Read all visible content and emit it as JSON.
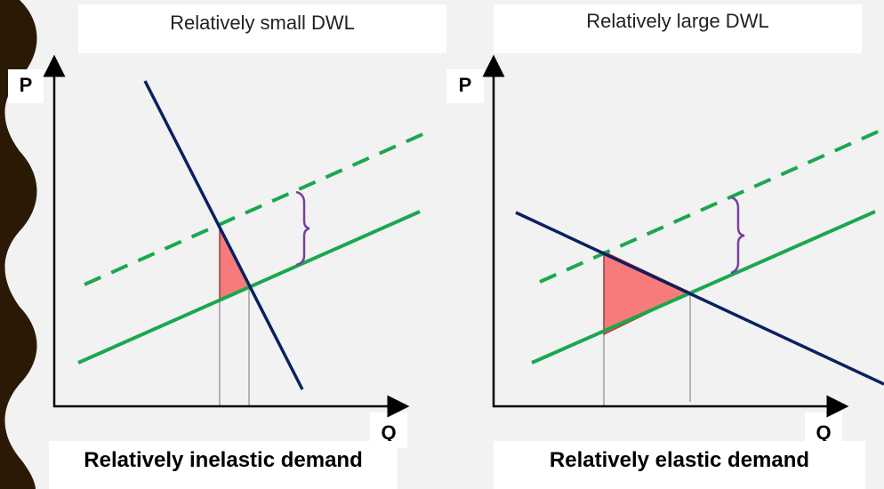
{
  "left_panel": {
    "title": "Relatively small DWL",
    "y_axis_label": "P",
    "x_axis_label": "Q",
    "caption": "Relatively inelastic demand"
  },
  "right_panel": {
    "title": "Relatively large DWL",
    "y_axis_label": "P",
    "x_axis_label": "Q",
    "caption": "Relatively elastic demand"
  },
  "colors": {
    "demand": "#0a2160",
    "supply": "#1aa84f",
    "dwl_fill": "#f77b7b",
    "dwl_edge": "#d42a2a",
    "tax_brace": "#7a3fa0",
    "axes": "#000000",
    "side_bar": "#2a1a05"
  }
}
